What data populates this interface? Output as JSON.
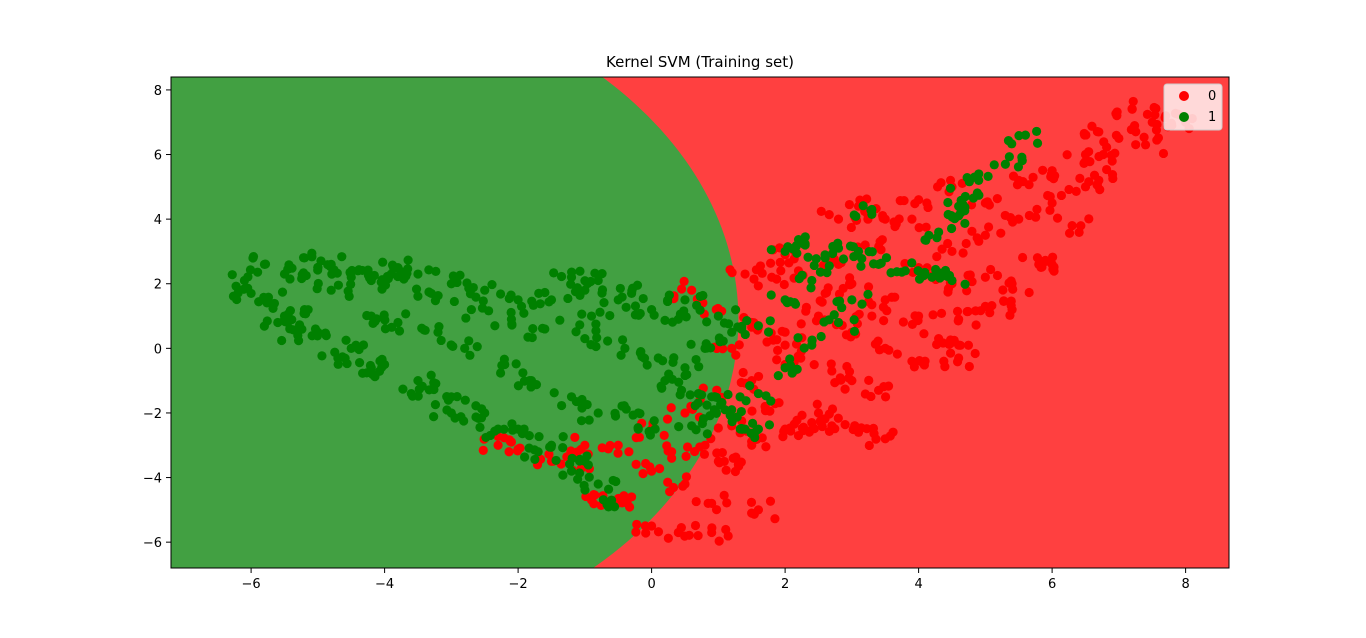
{
  "chart_data": {
    "type": "scatter",
    "title": "Kernel SVM (Training set)",
    "xlabel": "",
    "ylabel": "",
    "xlim": [
      -7.2,
      8.65
    ],
    "ylim": [
      -6.8,
      8.4
    ],
    "x_ticks": [
      -6,
      -4,
      -2,
      0,
      2,
      4,
      6,
      8
    ],
    "y_ticks": [
      -6,
      -4,
      -2,
      0,
      2,
      4,
      6,
      8
    ],
    "x_tick_labels": [
      "−6",
      "−4",
      "−2",
      "0",
      "2",
      "4",
      "6",
      "8"
    ],
    "y_tick_labels": [
      "−6",
      "−4",
      "−2",
      "0",
      "2",
      "4",
      "6",
      "8"
    ],
    "grid": false,
    "legend_position": "top-right",
    "background_regions": {
      "class_0_color": "#ff4040",
      "class_1_color": "#42a042",
      "class_1_region_boundary": {
        "shape": "ellipse",
        "center": [
          -5.5,
          0.9
        ],
        "radius_x": 6.8,
        "radius_y": 10.5
      }
    },
    "series": [
      {
        "name": "0",
        "color": "#ff0000",
        "points": [
          [
            1.0,
            1.2
          ],
          [
            1.5,
            0.8
          ],
          [
            2.0,
            0.5
          ],
          [
            2.5,
            1.0
          ],
          [
            3.0,
            0.5
          ],
          [
            3.5,
            1.5
          ],
          [
            3.0,
            2.0
          ],
          [
            2.0,
            -0.5
          ],
          [
            1.5,
            -1.0
          ],
          [
            1.0,
            -1.5
          ],
          [
            0.5,
            -2.0
          ],
          [
            0.0,
            -2.5
          ],
          [
            -0.5,
            -3.0
          ],
          [
            -1.0,
            -3.5
          ],
          [
            0.0,
            -3.8
          ],
          [
            0.5,
            -4.2
          ],
          [
            1.0,
            -3.5
          ],
          [
            1.5,
            -3.0
          ],
          [
            2.0,
            -2.5
          ],
          [
            2.5,
            -2.0
          ],
          [
            3.0,
            -1.0
          ],
          [
            3.5,
            0.0
          ],
          [
            4.0,
            1.0
          ],
          [
            4.5,
            2.0
          ],
          [
            4.0,
            2.5
          ],
          [
            4.5,
            3.0
          ],
          [
            5.0,
            3.5
          ],
          [
            5.5,
            4.0
          ],
          [
            5.0,
            4.5
          ],
          [
            6.0,
            4.5
          ],
          [
            6.5,
            5.0
          ],
          [
            6.0,
            5.5
          ],
          [
            6.5,
            6.0
          ],
          [
            7.0,
            6.5
          ],
          [
            7.5,
            7.0
          ],
          [
            8.0,
            7.0
          ],
          [
            7.2,
            7.4
          ],
          [
            6.7,
            6.7
          ],
          [
            5.5,
            5.2
          ],
          [
            4.5,
            5.0
          ],
          [
            4.0,
            4.6
          ],
          [
            3.5,
            4.0
          ],
          [
            3.2,
            3.2
          ],
          [
            2.8,
            2.6
          ],
          [
            2.2,
            2.4
          ],
          [
            1.8,
            2.2
          ],
          [
            0.6,
            1.8
          ],
          [
            1.2,
            0.0
          ],
          [
            0.9,
            -5.7
          ],
          [
            0.4,
            -5.7
          ],
          [
            1.6,
            -5.0
          ],
          [
            -0.9,
            -4.7
          ],
          [
            -0.6,
            -4.7
          ],
          [
            -0.3,
            -4.6
          ],
          [
            0.0,
            -5.5
          ],
          [
            0.9,
            -4.8
          ],
          [
            3.5,
            -2.8
          ],
          [
            3.1,
            -2.6
          ],
          [
            2.4,
            -2.3
          ],
          [
            -2.3,
            -3.0
          ],
          [
            -2.1,
            -2.9
          ],
          [
            -1.5,
            -3.5
          ],
          [
            -1.0,
            -3.0
          ],
          [
            0.8,
            -3.0
          ],
          [
            1.3,
            -3.6
          ],
          [
            2.2,
            -2.7
          ],
          [
            2.7,
            -2.4
          ],
          [
            3.4,
            -1.3
          ],
          [
            3.9,
            -0.4
          ],
          [
            4.3,
            0.3
          ],
          [
            4.6,
            0.9
          ],
          [
            4.6,
            -0.3
          ],
          [
            4.6,
            0.1
          ],
          [
            5.0,
            1.3
          ],
          [
            5.4,
            1.2
          ],
          [
            5.8,
            2.6
          ],
          [
            6.0,
            2.6
          ],
          [
            5.4,
            2.0
          ],
          [
            5.0,
            2.2
          ],
          [
            6.3,
            3.8
          ],
          [
            6.7,
            5.2
          ],
          [
            6.9,
            5.8
          ],
          [
            7.4,
            6.3
          ],
          [
            7.7,
            7.2
          ],
          [
            3.9,
            4.0
          ],
          [
            3.1,
            4.4
          ],
          [
            2.8,
            4.0
          ],
          [
            2.0,
            2.9
          ],
          [
            1.4,
            2.3
          ],
          [
            2.6,
            1.7
          ],
          [
            3.3,
            1.0
          ],
          [
            2.0,
            0.1
          ],
          [
            2.7,
            -0.7
          ],
          [
            1.7,
            -1.8
          ],
          [
            1.2,
            -2.4
          ],
          [
            0.3,
            -3.2
          ]
        ]
      },
      {
        "name": "1",
        "color": "#008000",
        "points": [
          [
            -6.1,
            2.1
          ],
          [
            -6.0,
            1.7
          ],
          [
            -5.8,
            2.6
          ],
          [
            -5.5,
            2.3
          ],
          [
            -5.2,
            2.8
          ],
          [
            -5.0,
            2.5
          ],
          [
            -4.8,
            2.6
          ],
          [
            -4.5,
            2.2
          ],
          [
            -4.2,
            2.1
          ],
          [
            -3.8,
            2.5
          ],
          [
            -3.5,
            2.3
          ],
          [
            -3.0,
            2.0
          ],
          [
            -2.5,
            1.8
          ],
          [
            -2.0,
            1.5
          ],
          [
            -1.5,
            1.5
          ],
          [
            -1.0,
            1.8
          ],
          [
            -0.5,
            1.5
          ],
          [
            0.0,
            1.2
          ],
          [
            0.5,
            1.5
          ],
          [
            1.0,
            1.0
          ],
          [
            -5.5,
            1.0
          ],
          [
            -5.0,
            0.5
          ],
          [
            -4.5,
            0.0
          ],
          [
            -4.0,
            -0.5
          ],
          [
            -3.5,
            -1.0
          ],
          [
            -3.0,
            -1.5
          ],
          [
            -2.5,
            -2.0
          ],
          [
            -2.0,
            -2.5
          ],
          [
            -1.5,
            -3.0
          ],
          [
            -1.0,
            -3.5
          ],
          [
            -0.8,
            -4.2
          ],
          [
            -0.6,
            -4.7
          ],
          [
            -5.8,
            1.5
          ],
          [
            -5.2,
            1.2
          ],
          [
            -4.8,
            1.8
          ],
          [
            -4.2,
            1.0
          ],
          [
            -3.8,
            0.8
          ],
          [
            -3.2,
            0.5
          ],
          [
            -2.8,
            0.0
          ],
          [
            -2.2,
            -0.5
          ],
          [
            -1.8,
            -1.0
          ],
          [
            -1.2,
            -1.5
          ],
          [
            -0.8,
            -2.0
          ],
          [
            -0.2,
            -2.5
          ],
          [
            0.2,
            -1.0
          ],
          [
            0.8,
            0.0
          ],
          [
            1.2,
            0.5
          ],
          [
            1.6,
            0.7
          ],
          [
            2.0,
            1.5
          ],
          [
            2.4,
            2.1
          ],
          [
            2.6,
            2.8
          ],
          [
            2.8,
            3.1
          ],
          [
            3.1,
            3.0
          ],
          [
            3.4,
            2.6
          ],
          [
            3.8,
            2.4
          ],
          [
            4.2,
            2.2
          ],
          [
            4.5,
            2.1
          ],
          [
            3.0,
            1.5
          ],
          [
            2.8,
            0.8
          ],
          [
            2.4,
            0.1
          ],
          [
            2.0,
            -0.6
          ],
          [
            1.6,
            -1.4
          ],
          [
            1.2,
            -1.9
          ],
          [
            0.6,
            -2.4
          ],
          [
            4.9,
            5.2
          ],
          [
            5.3,
            5.7
          ],
          [
            5.6,
            6.6
          ],
          [
            4.6,
            4.4
          ],
          [
            4.6,
            4.1
          ],
          [
            4.7,
            4.7
          ],
          [
            4.3,
            3.6
          ],
          [
            3.3,
            4.3
          ],
          [
            2.3,
            3.2
          ],
          [
            2.0,
            3.0
          ],
          [
            1.4,
            -2.5
          ],
          [
            1.6,
            -2.5
          ],
          [
            1.1,
            -1.9
          ],
          [
            0.9,
            -1.5
          ],
          [
            0.7,
            -1.4
          ],
          [
            -0.2,
            -2.0
          ],
          [
            -1.2,
            -3.8
          ],
          [
            -1.7,
            -3.2
          ],
          [
            -2.3,
            -2.5
          ],
          [
            -3.0,
            -2.0
          ],
          [
            -3.6,
            -1.4
          ],
          [
            -4.2,
            -0.6
          ],
          [
            -4.7,
            -0.3
          ],
          [
            -5.3,
            0.4
          ],
          [
            -5.6,
            0.8
          ],
          [
            -4.4,
            2.4
          ],
          [
            -3.9,
            2.3
          ],
          [
            -3.3,
            1.7
          ],
          [
            -2.7,
            1.2
          ],
          [
            -2.1,
            0.9
          ],
          [
            -1.6,
            0.6
          ],
          [
            -1.0,
            0.3
          ],
          [
            -0.4,
            0.0
          ],
          [
            0.1,
            -0.3
          ],
          [
            0.5,
            -0.6
          ],
          [
            0.4,
            0.9
          ],
          [
            -0.9,
            1.0
          ],
          [
            -1.2,
            2.2
          ],
          [
            -0.8,
            2.1
          ],
          [
            -0.3,
            1.7
          ]
        ]
      }
    ]
  }
}
